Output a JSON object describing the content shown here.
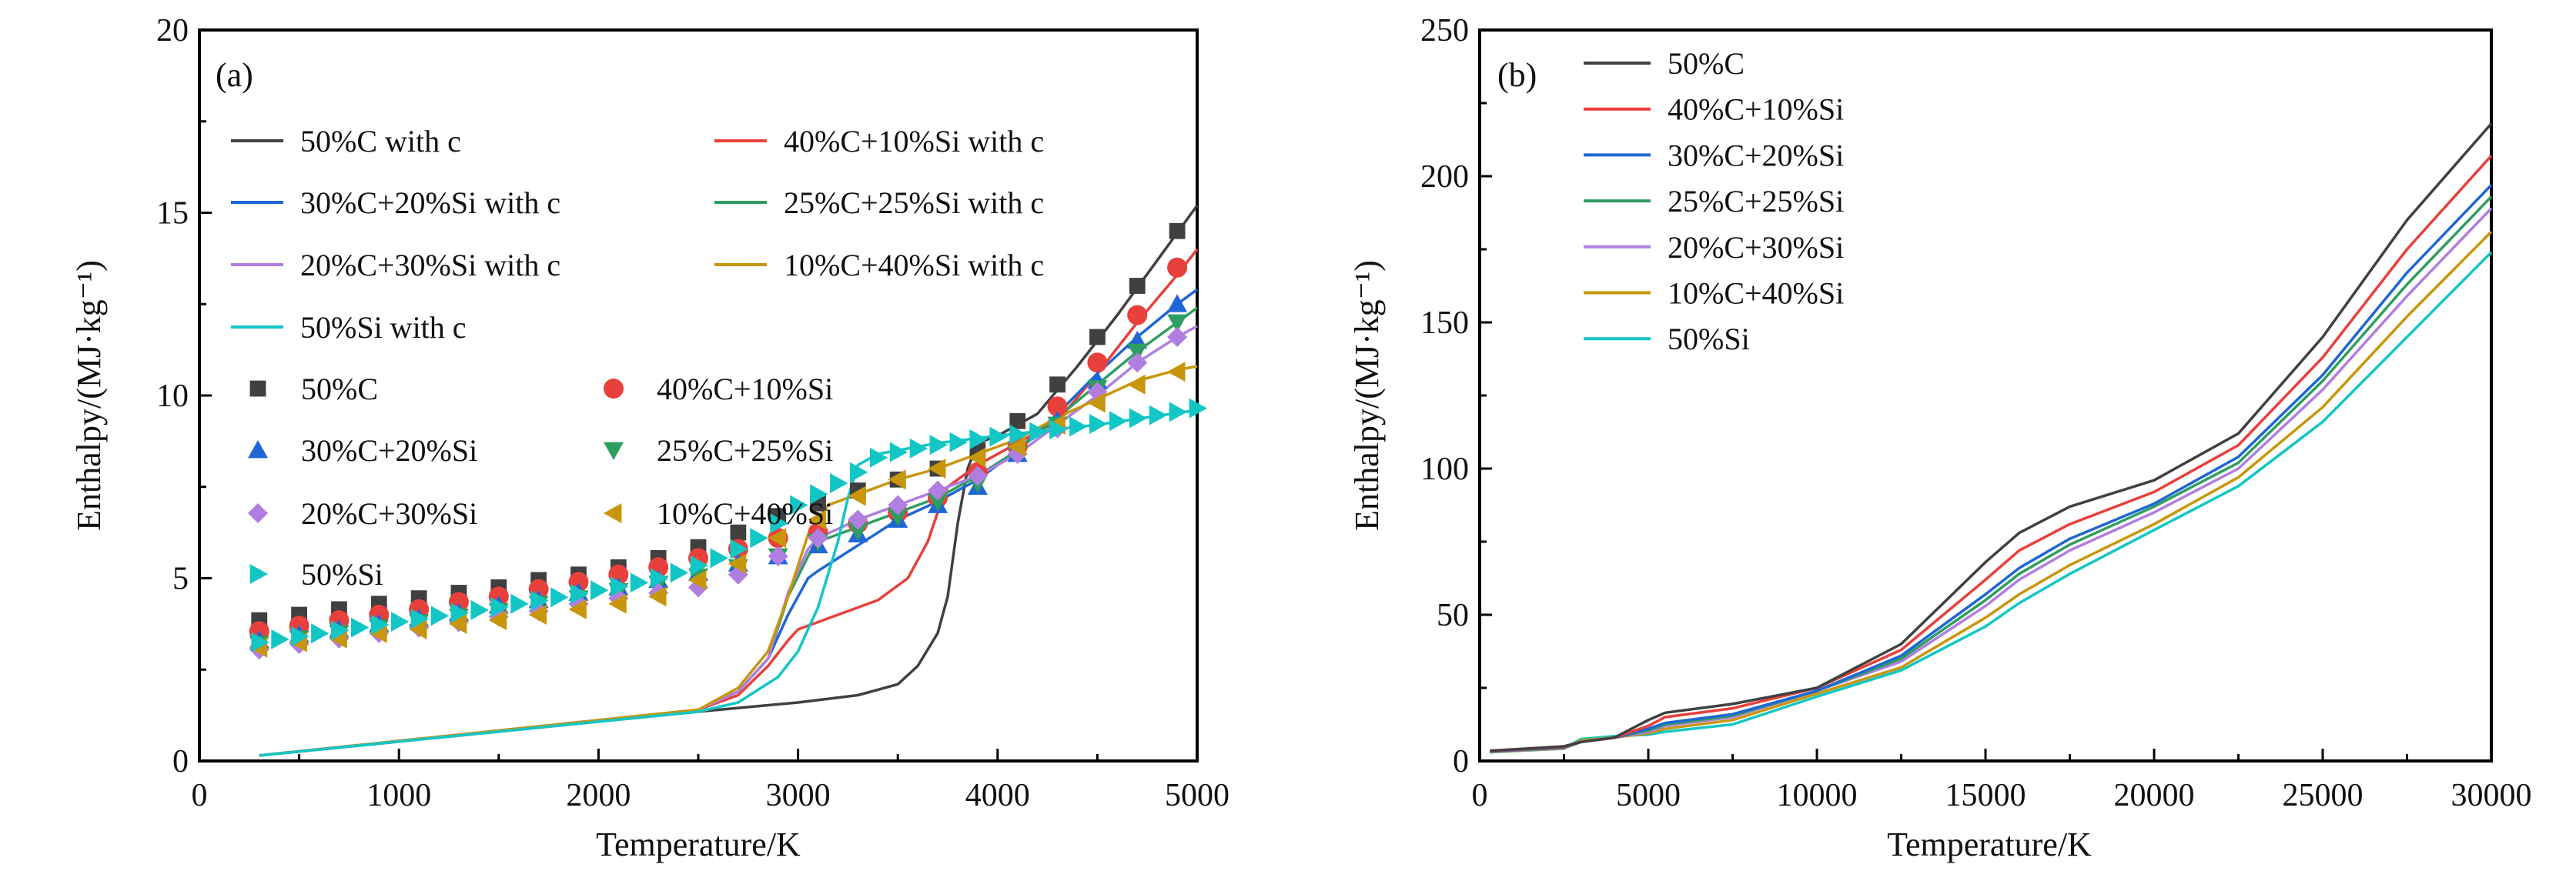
{
  "chart_data": [
    {
      "type": "line+scatter",
      "panel_label": "(a)",
      "xlabel": "Temperature/K",
      "ylabel": "Enthalpy/(MJ·kg⁻¹)",
      "xlim": [
        0,
        5000
      ],
      "ylim": [
        0,
        20
      ],
      "xticks": [
        "0",
        "1000",
        "2000",
        "3000",
        "4000",
        "5000"
      ],
      "xtick_values": [
        0,
        1000,
        2000,
        3000,
        4000,
        5000
      ],
      "yticks": [
        "0",
        "5",
        "10",
        "15",
        "20"
      ],
      "ytick_values": [
        0,
        5,
        10,
        15,
        20
      ],
      "legend_position": "top-left",
      "lines": [
        {
          "name": "50%C with c",
          "color": "#404040",
          "x": [
            300,
            2500,
            3000,
            3300,
            3500,
            3600,
            3700,
            3750,
            3800,
            3850,
            3900,
            4000,
            4200,
            4400,
            4600,
            4800,
            5000
          ],
          "y": [
            0.15,
            1.35,
            1.6,
            1.8,
            2.1,
            2.6,
            3.5,
            4.5,
            6.5,
            8.0,
            8.7,
            8.9,
            9.5,
            10.8,
            12.2,
            13.7,
            15.2
          ]
        },
        {
          "name": "40%C+10%Si with c",
          "color": "#e8403c",
          "x": [
            300,
            2500,
            2700,
            2850,
            2950,
            3000,
            3200,
            3400,
            3550,
            3650,
            3700,
            3750,
            3900,
            4100,
            4300,
            4500,
            4700,
            4900,
            5000
          ],
          "y": [
            0.15,
            1.4,
            1.8,
            2.6,
            3.3,
            3.6,
            4.0,
            4.4,
            5.0,
            6.0,
            6.8,
            7.5,
            8.1,
            8.7,
            9.3,
            10.6,
            12.0,
            13.3,
            14.0
          ]
        },
        {
          "name": "30%C+20%Si with c",
          "color": "#1f66d6",
          "x": [
            300,
            2500,
            2700,
            2850,
            2950,
            3050,
            3100,
            3300,
            3500,
            3700,
            3900,
            4100,
            4300,
            4500,
            4700,
            4900,
            5000
          ],
          "y": [
            0.15,
            1.4,
            1.9,
            2.8,
            4.0,
            5.0,
            5.2,
            5.9,
            6.6,
            7.1,
            7.7,
            8.5,
            9.5,
            10.6,
            11.6,
            12.5,
            12.9
          ]
        },
        {
          "name": "25%C+25%Si with c",
          "color": "#2e9e60",
          "x": [
            300,
            2500,
            2700,
            2850,
            2950,
            3050,
            3100,
            3300,
            3500,
            3700,
            3900,
            4100,
            4300,
            4500,
            4700,
            4900,
            5000
          ],
          "y": [
            0.15,
            1.4,
            1.9,
            2.8,
            4.5,
            5.6,
            6.0,
            6.4,
            6.8,
            7.2,
            7.8,
            8.5,
            9.4,
            10.3,
            11.2,
            12.0,
            12.4
          ]
        },
        {
          "name": "20%C+30%Si with c",
          "color": "#b07ee0",
          "x": [
            300,
            2500,
            2700,
            2850,
            2950,
            3050,
            3100,
            3300,
            3500,
            3700,
            3900,
            4100,
            4300,
            4500,
            4700,
            4900,
            5000
          ],
          "y": [
            0.15,
            1.4,
            1.9,
            2.8,
            4.6,
            5.8,
            6.1,
            6.6,
            7.0,
            7.4,
            7.8,
            8.4,
            9.2,
            10.0,
            10.9,
            11.6,
            11.9
          ]
        },
        {
          "name": "10%C+40%Si with c",
          "color": "#c8960a",
          "x": [
            300,
            2500,
            2700,
            2850,
            2950,
            3050,
            3150,
            3300,
            3500,
            3700,
            3900,
            4100,
            4300,
            4500,
            4700,
            4900,
            5000
          ],
          "y": [
            0.15,
            1.4,
            2.0,
            3.0,
            4.5,
            6.2,
            7.0,
            7.3,
            7.7,
            8.0,
            8.4,
            8.8,
            9.4,
            9.9,
            10.4,
            10.7,
            10.8
          ]
        },
        {
          "name": "50%Si with c",
          "color": "#13c6c6",
          "x": [
            300,
            2500,
            2700,
            2900,
            3000,
            3100,
            3200,
            3250,
            3300,
            3400,
            3700,
            4000,
            4500,
            5000
          ],
          "y": [
            0.15,
            1.35,
            1.6,
            2.3,
            3.0,
            4.2,
            6.0,
            7.2,
            8.1,
            8.4,
            8.7,
            8.9,
            9.2,
            9.6
          ]
        }
      ],
      "scatter": [
        {
          "name": "50%C",
          "color": "#404040",
          "marker": "square",
          "x_start": 300,
          "x_step": 200,
          "y": [
            3.85,
            4.0,
            4.15,
            4.3,
            4.45,
            4.6,
            4.75,
            4.95,
            5.1,
            5.3,
            5.55,
            5.85,
            6.25,
            6.7,
            7.05,
            7.4,
            7.7,
            8.0,
            8.5,
            9.3,
            10.3,
            11.6,
            13.0,
            14.5
          ]
        },
        {
          "name": "40%C+10%Si",
          "color": "#e8403c",
          "marker": "circle",
          "x_start": 300,
          "x_step": 200,
          "y": [
            3.55,
            3.7,
            3.85,
            4.0,
            4.15,
            4.35,
            4.5,
            4.7,
            4.9,
            5.1,
            5.3,
            5.55,
            5.8,
            6.1,
            6.25,
            6.5,
            6.8,
            7.2,
            7.9,
            8.6,
            9.7,
            10.9,
            12.2,
            13.5
          ]
        },
        {
          "name": "30%C+20%Si",
          "color": "#1f66d6",
          "marker": "triangle-up",
          "x_start": 300,
          "x_step": 200,
          "y": [
            3.3,
            3.45,
            3.6,
            3.75,
            3.9,
            4.05,
            4.25,
            4.4,
            4.6,
            4.75,
            4.95,
            5.15,
            5.4,
            5.6,
            5.9,
            6.2,
            6.6,
            7.0,
            7.5,
            8.4,
            9.3,
            10.4,
            11.5,
            12.5
          ]
        },
        {
          "name": "25%C+25%Si",
          "color": "#2e9e60",
          "marker": "triangle-down",
          "x_start": 300,
          "x_step": 200,
          "y": [
            3.2,
            3.35,
            3.5,
            3.65,
            3.8,
            3.95,
            4.1,
            4.3,
            4.45,
            4.65,
            4.85,
            5.05,
            5.3,
            5.6,
            6.0,
            6.3,
            6.7,
            7.1,
            7.6,
            8.4,
            9.2,
            10.2,
            11.2,
            12.0
          ]
        },
        {
          "name": "20%C+30%Si",
          "color": "#b07ee0",
          "marker": "diamond",
          "x_start": 300,
          "x_step": 200,
          "y": [
            3.05,
            3.2,
            3.35,
            3.5,
            3.65,
            3.8,
            3.95,
            4.1,
            4.3,
            4.45,
            4.6,
            4.75,
            5.1,
            5.6,
            6.1,
            6.6,
            7.0,
            7.4,
            7.8,
            8.4,
            9.1,
            10.1,
            10.9,
            11.6
          ]
        },
        {
          "name": "10%C+40%Si",
          "color": "#c8960a",
          "marker": "triangle-left",
          "x_start": 300,
          "x_step": 200,
          "y": [
            3.1,
            3.25,
            3.35,
            3.5,
            3.6,
            3.75,
            3.85,
            4.0,
            4.15,
            4.3,
            4.5,
            4.95,
            5.4,
            6.1,
            6.6,
            7.25,
            7.7,
            8.0,
            8.3,
            8.6,
            9.2,
            9.8,
            10.3,
            10.65
          ]
        },
        {
          "name": "50%Si",
          "color": "#13c6c6",
          "marker": "triangle-right",
          "x_start": 300,
          "x_step": 100,
          "y": [
            3.25,
            3.33,
            3.41,
            3.49,
            3.57,
            3.65,
            3.73,
            3.81,
            3.89,
            3.97,
            4.05,
            4.13,
            4.21,
            4.3,
            4.39,
            4.48,
            4.57,
            4.67,
            4.77,
            4.88,
            5.0,
            5.15,
            5.35,
            5.55,
            5.8,
            6.1,
            6.5,
            7.0,
            7.3,
            7.6,
            7.9,
            8.3,
            8.45,
            8.55,
            8.65,
            8.72,
            8.8,
            8.87,
            8.93,
            9.0,
            9.07,
            9.15,
            9.22,
            9.3,
            9.38,
            9.46,
            9.55,
            9.65
          ]
        }
      ]
    },
    {
      "type": "line",
      "panel_label": "(b)",
      "xlabel": "Temperature/K",
      "ylabel": "Enthalpy/(MJ·kg⁻¹)",
      "xlim": [
        0,
        30000
      ],
      "ylim": [
        0,
        250
      ],
      "xticks": [
        "0",
        "5000",
        "10000",
        "15000",
        "20000",
        "25000",
        "30000"
      ],
      "xtick_values": [
        0,
        5000,
        10000,
        15000,
        20000,
        25000,
        30000
      ],
      "yticks": [
        "0",
        "50",
        "100",
        "150",
        "200",
        "250"
      ],
      "ytick_values": [
        0,
        50,
        100,
        150,
        200,
        250
      ],
      "legend_position": "top-left",
      "x": [
        300,
        2500,
        3000,
        4000,
        5000,
        5500,
        7500,
        10000,
        12500,
        15000,
        16000,
        17500,
        20000,
        22500,
        25000,
        27500,
        30000
      ],
      "series": [
        {
          "name": "50%C",
          "color": "#404040",
          "values": [
            3.5,
            5,
            6.5,
            8,
            14,
            16.5,
            19.5,
            25,
            40,
            68,
            78,
            87,
            96,
            112,
            145,
            185,
            218
          ]
        },
        {
          "name": "40%C+10%Si",
          "color": "#e8403c",
          "values": [
            3.4,
            4.8,
            6.5,
            8,
            12,
            15,
            18,
            25,
            38,
            62,
            72,
            81,
            92,
            108,
            138,
            175,
            207
          ]
        },
        {
          "name": "30%C+20%Si",
          "color": "#1f66d6",
          "values": [
            3.3,
            4.6,
            6.5,
            8,
            11,
            13,
            16,
            24,
            36,
            57,
            66,
            76,
            88,
            104,
            132,
            167,
            197
          ]
        },
        {
          "name": "25%C+25%Si",
          "color": "#2e9e60",
          "values": [
            3.3,
            4.5,
            6.5,
            8,
            10.5,
            12.5,
            15.5,
            24,
            35,
            55,
            64,
            74,
            87,
            102,
            130,
            163,
            193
          ]
        },
        {
          "name": "20%C+30%Si",
          "color": "#b07ee0",
          "values": [
            3.2,
            4.4,
            6.5,
            8,
            10,
            12,
            15,
            24,
            34,
            53,
            62,
            72,
            85,
            100,
            127,
            159,
            189
          ]
        },
        {
          "name": "10%C+40%Si",
          "color": "#c8960a",
          "values": [
            3.1,
            4.3,
            7,
            8,
            9.5,
            11,
            14,
            23,
            32,
            49,
            57,
            67,
            81,
            97,
            121,
            152,
            181
          ]
        },
        {
          "name": "50%Si",
          "color": "#13c6c6",
          "values": [
            3,
            4.2,
            7.5,
            8.5,
            9,
            10,
            12.5,
            22,
            31,
            46,
            54,
            64,
            79,
            94,
            116,
            145,
            174
          ]
        }
      ]
    }
  ]
}
